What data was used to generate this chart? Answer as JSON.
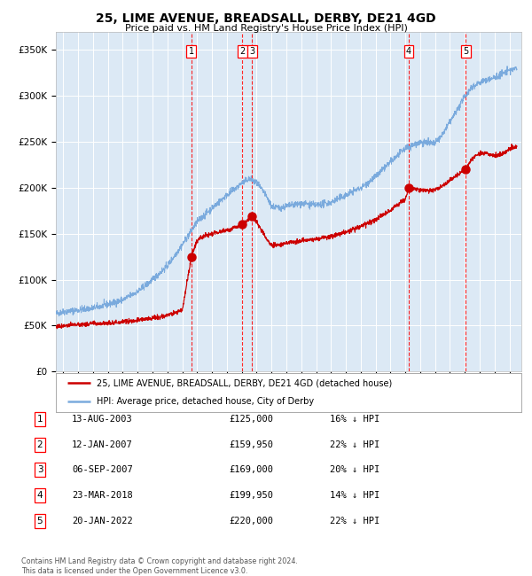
{
  "title": "25, LIME AVENUE, BREADSALL, DERBY, DE21 4GD",
  "subtitle": "Price paid vs. HM Land Registry's House Price Index (HPI)",
  "legend_line1": "25, LIME AVENUE, BREADSALL, DERBY, DE21 4GD (detached house)",
  "legend_line2": "HPI: Average price, detached house, City of Derby",
  "footer1": "Contains HM Land Registry data © Crown copyright and database right 2024.",
  "footer2": "This data is licensed under the Open Government Licence v3.0.",
  "plot_bg_color": "#dce9f5",
  "red_line_color": "#cc0000",
  "blue_line_color": "#7aaadd",
  "sales": [
    {
      "label": "1",
      "date_num": 2003.617,
      "price": 125000
    },
    {
      "label": "2",
      "date_num": 2007.036,
      "price": 159950
    },
    {
      "label": "3",
      "date_num": 2007.678,
      "price": 169000
    },
    {
      "label": "4",
      "date_num": 2018.228,
      "price": 199950
    },
    {
      "label": "5",
      "date_num": 2022.054,
      "price": 220000
    }
  ],
  "table_rows": [
    {
      "num": "1",
      "date": "13-AUG-2003",
      "price": "£125,000",
      "hpi": "16% ↓ HPI"
    },
    {
      "num": "2",
      "date": "12-JAN-2007",
      "price": "£159,950",
      "hpi": "22% ↓ HPI"
    },
    {
      "num": "3",
      "date": "06-SEP-2007",
      "price": "£169,000",
      "hpi": "20% ↓ HPI"
    },
    {
      "num": "4",
      "date": "23-MAR-2018",
      "price": "£199,950",
      "hpi": "14% ↓ HPI"
    },
    {
      "num": "5",
      "date": "20-JAN-2022",
      "price": "£220,000",
      "hpi": "22% ↓ HPI"
    }
  ],
  "yticks": [
    0,
    50000,
    100000,
    150000,
    200000,
    250000,
    300000,
    350000
  ],
  "ylim": [
    0,
    370000
  ],
  "xlim_start": 1994.5,
  "xlim_end": 2025.8,
  "xticks": [
    1995,
    1996,
    1997,
    1998,
    1999,
    2000,
    2001,
    2002,
    2003,
    2004,
    2005,
    2006,
    2007,
    2008,
    2009,
    2010,
    2011,
    2012,
    2013,
    2014,
    2015,
    2016,
    2017,
    2018,
    2019,
    2020,
    2021,
    2022,
    2023,
    2024,
    2025
  ]
}
